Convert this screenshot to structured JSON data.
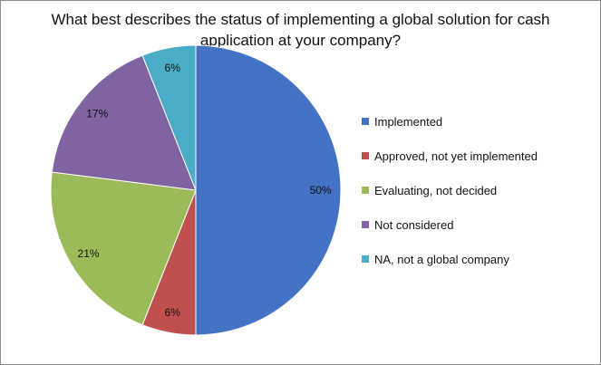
{
  "chart_data": {
    "type": "pie",
    "title": "What best describes the status of implementing a global solution for cash application at your company?",
    "slices": [
      {
        "label": "Implemented",
        "value": 50,
        "value_label": "50%",
        "color": "#4472C4"
      },
      {
        "label": "Approved, not yet implemented",
        "value": 6,
        "value_label": "6%",
        "color": "#C0504D"
      },
      {
        "label": "Evaluating, not decided",
        "value": 21,
        "value_label": "21%",
        "color": "#9BBB59"
      },
      {
        "label": "Not considered",
        "value": 17,
        "value_label": "17%",
        "color": "#8064A2"
      },
      {
        "label": "NA, not a global company",
        "value": 6,
        "value_label": "6%",
        "color": "#4BACC6"
      }
    ],
    "legend_position": "right",
    "start_angle": "12 o'clock, clockwise"
  }
}
